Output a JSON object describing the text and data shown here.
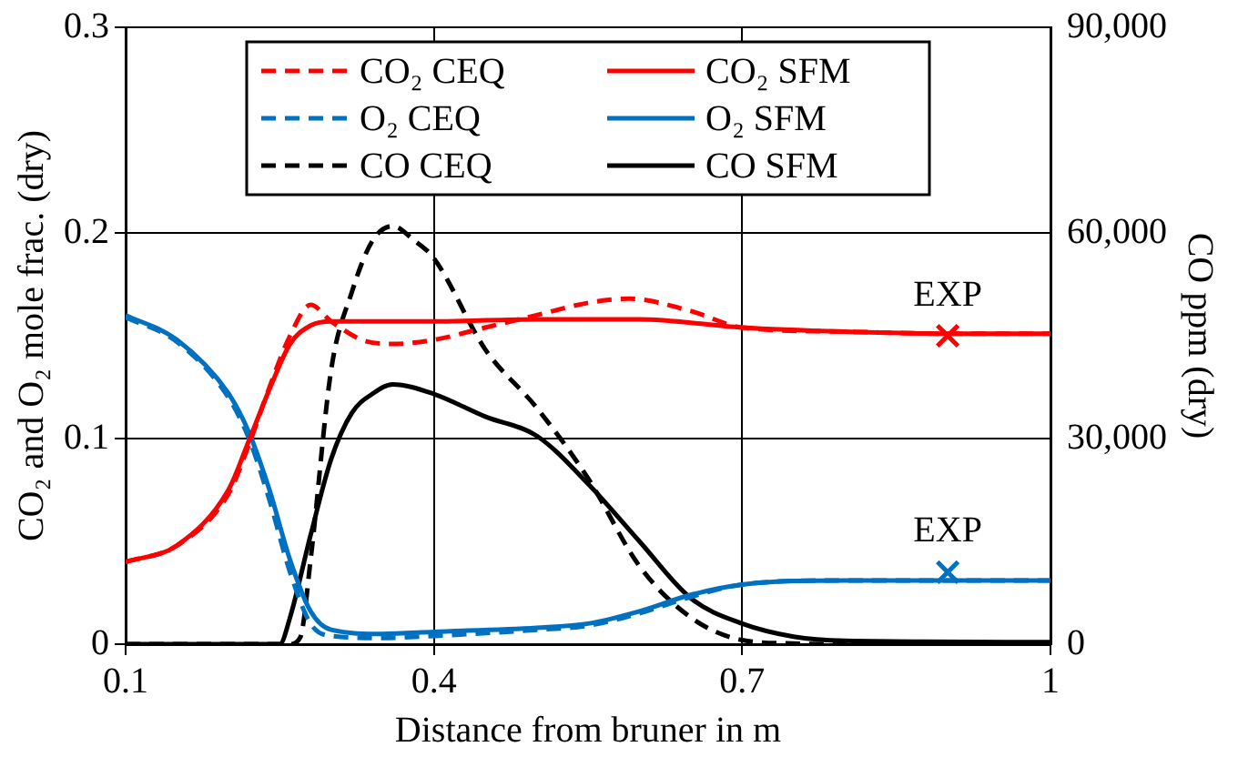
{
  "chart_data": {
    "type": "line",
    "xlabel": "Distance from bruner in m",
    "ylabel": "CO₂ and O₂ mole frac. (dry)",
    "y2label": "CO ppm (dry)",
    "xlim": [
      0.1,
      1
    ],
    "xticks": [
      0.1,
      0.4,
      0.7,
      1
    ],
    "ylim": [
      0,
      0.3
    ],
    "yticks": [
      0,
      0.1,
      0.2,
      0.3
    ],
    "y2lim": [
      0,
      90000
    ],
    "y2ticks": [
      0,
      {
        "value": 30000,
        "label": "30,000"
      },
      {
        "value": 60000,
        "label": "60,000"
      },
      {
        "value": 90000,
        "label": "90,000"
      }
    ],
    "grid": true,
    "legend": "top",
    "marker": "none",
    "series": [
      {
        "name": "CO₂ CEQ",
        "color": "#ff0000",
        "line_style": "dashed",
        "x": [
          0.1,
          0.15,
          0.2,
          0.22,
          0.24,
          0.26,
          0.28,
          0.3,
          0.33,
          0.36,
          0.4,
          0.45,
          0.5,
          0.55,
          0.59,
          0.65,
          0.7,
          0.8,
          0.9,
          1.0
        ],
        "values": [
          0.04,
          0.048,
          0.073,
          0.097,
          0.125,
          0.15,
          0.165,
          0.157,
          0.148,
          0.146,
          0.148,
          0.154,
          0.16,
          0.166,
          0.168,
          0.162,
          0.154,
          0.152,
          0.151,
          0.151
        ]
      },
      {
        "name": "CO₂ SFM",
        "color": "#ff0000",
        "line_style": "solid",
        "x": [
          0.1,
          0.15,
          0.2,
          0.22,
          0.24,
          0.26,
          0.28,
          0.3,
          0.4,
          0.5,
          0.6,
          0.7,
          0.8,
          0.9,
          1.0
        ],
        "values": [
          0.04,
          0.048,
          0.075,
          0.099,
          0.124,
          0.146,
          0.155,
          0.157,
          0.157,
          0.158,
          0.158,
          0.154,
          0.152,
          0.151,
          0.151
        ]
      },
      {
        "name": "O₂ CEQ",
        "color": "#0070c0",
        "line_style": "dashed",
        "x": [
          0.1,
          0.15,
          0.2,
          0.22,
          0.24,
          0.26,
          0.28,
          0.3,
          0.35,
          0.4,
          0.5,
          0.55,
          0.6,
          0.65,
          0.7,
          0.8,
          0.9,
          1.0
        ],
        "values": [
          0.159,
          0.147,
          0.12,
          0.1,
          0.07,
          0.035,
          0.01,
          0.004,
          0.003,
          0.004,
          0.007,
          0.009,
          0.015,
          0.023,
          0.029,
          0.031,
          0.031,
          0.031
        ]
      },
      {
        "name": "O₂ SFM",
        "color": "#0070c0",
        "line_style": "solid",
        "x": [
          0.1,
          0.15,
          0.2,
          0.22,
          0.24,
          0.26,
          0.28,
          0.3,
          0.35,
          0.4,
          0.5,
          0.55,
          0.6,
          0.65,
          0.7,
          0.8,
          0.9,
          1.0
        ],
        "values": [
          0.16,
          0.148,
          0.122,
          0.103,
          0.075,
          0.041,
          0.016,
          0.007,
          0.005,
          0.006,
          0.008,
          0.01,
          0.016,
          0.024,
          0.029,
          0.031,
          0.031,
          0.031
        ]
      },
      {
        "name": "CO CEQ",
        "color": "#000000",
        "line_style": "dashed",
        "axis": "y2",
        "x": [
          0.1,
          0.2,
          0.26,
          0.27,
          0.28,
          0.3,
          0.32,
          0.34,
          0.36,
          0.38,
          0.4,
          0.45,
          0.5,
          0.55,
          0.6,
          0.65,
          0.7,
          0.75,
          0.8,
          1.0
        ],
        "values": [
          0,
          0,
          0,
          1000,
          12300,
          40000,
          51300,
          58800,
          61000,
          59000,
          56300,
          43000,
          34500,
          24200,
          11400,
          3900,
          600,
          100,
          0,
          0
        ]
      },
      {
        "name": "CO SFM",
        "color": "#000000",
        "line_style": "solid",
        "axis": "y2",
        "x": [
          0.1,
          0.2,
          0.25,
          0.26,
          0.28,
          0.3,
          0.32,
          0.34,
          0.36,
          0.4,
          0.45,
          0.5,
          0.55,
          0.6,
          0.65,
          0.7,
          0.75,
          0.8,
          1.0
        ],
        "values": [
          0,
          0,
          0,
          3900,
          15900,
          27000,
          33700,
          36500,
          37900,
          36500,
          33200,
          30400,
          23400,
          15000,
          6700,
          3000,
          1100,
          500,
          300
        ]
      },
      {
        "name": "EXP",
        "type": "scatter",
        "marker": "cross",
        "color": "#ff0000",
        "x": [
          0.9
        ],
        "values": [
          0.15
        ]
      },
      {
        "name": "EXP",
        "type": "scatter",
        "marker": "cross",
        "color": "#0070c0",
        "x": [
          0.9
        ],
        "values": [
          0.035
        ]
      }
    ]
  }
}
